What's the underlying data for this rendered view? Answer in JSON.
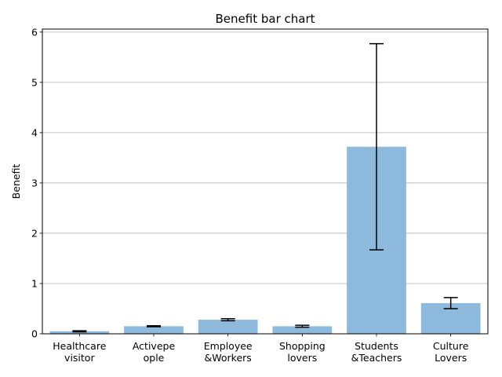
{
  "chart_data": {
    "type": "bar",
    "title": "Benefit bar chart",
    "xlabel": "",
    "ylabel": "Benefit",
    "categories": [
      [
        "Healthcare",
        "visitor"
      ],
      [
        "Activepe",
        "ople"
      ],
      [
        "Employee",
        "&Workers"
      ],
      [
        "Shopping",
        "lovers"
      ],
      [
        "Students",
        "&Teachers"
      ],
      [
        "Culture",
        "Lovers"
      ]
    ],
    "values": [
      0.05,
      0.15,
      0.28,
      0.15,
      3.72,
      0.61
    ],
    "error_low": [
      0.04,
      0.14,
      0.26,
      0.13,
      1.67,
      0.5
    ],
    "error_high": [
      0.06,
      0.16,
      0.3,
      0.17,
      5.77,
      0.72
    ],
    "ylim": [
      0,
      6.06
    ],
    "yticks": [
      "0",
      "1",
      "2",
      "3",
      "4",
      "5",
      "6"
    ],
    "ytick_values": [
      0,
      1,
      2,
      3,
      4,
      5,
      6
    ],
    "grid": "horizontal",
    "colors": {
      "bar": "#8cb9dc",
      "error": "#000000",
      "grid": "#b0b0b0",
      "axis": "#000000"
    }
  }
}
